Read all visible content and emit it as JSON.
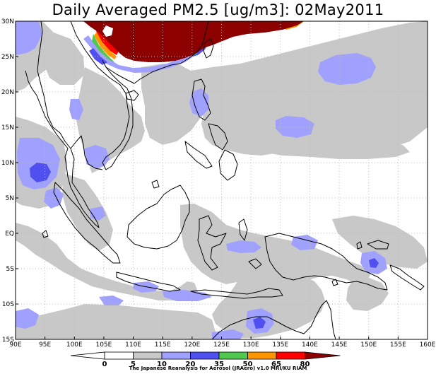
{
  "title": "Daily Averaged PM2.5 [ug/m3]: 02May2011",
  "map": {
    "lon_min": 90,
    "lon_max": 160,
    "lat_min": -15,
    "lat_max": 30,
    "lon_ticks": [
      {
        "v": 90,
        "t": "90E"
      },
      {
        "v": 95,
        "t": "95E"
      },
      {
        "v": 100,
        "t": "100E"
      },
      {
        "v": 105,
        "t": "105E"
      },
      {
        "v": 110,
        "t": "110E"
      },
      {
        "v": 115,
        "t": "115E"
      },
      {
        "v": 120,
        "t": "120E"
      },
      {
        "v": 125,
        "t": "125E"
      },
      {
        "v": 130,
        "t": "130E"
      },
      {
        "v": 135,
        "t": "135E"
      },
      {
        "v": 140,
        "t": "140E"
      },
      {
        "v": 145,
        "t": "145E"
      },
      {
        "v": 150,
        "t": "150E"
      },
      {
        "v": 155,
        "t": "155E"
      },
      {
        "v": 160,
        "t": "160E"
      }
    ],
    "lat_ticks": [
      {
        "v": 30,
        "t": "30N"
      },
      {
        "v": 25,
        "t": "25N"
      },
      {
        "v": 20,
        "t": "20N"
      },
      {
        "v": 15,
        "t": "15N"
      },
      {
        "v": 10,
        "t": "10N"
      },
      {
        "v": 5,
        "t": "5N"
      },
      {
        "v": 0,
        "t": "EQ"
      },
      {
        "v": -5,
        "t": "5S"
      },
      {
        "v": -10,
        "t": "10S"
      },
      {
        "v": -15,
        "t": "15S"
      }
    ],
    "colors": {
      "c0": "#ffffff",
      "c5": "#c8c8c8",
      "c10": "#a0a0ff",
      "c20": "#5050f0",
      "c35": "#50c850",
      "c50": "#ff9600",
      "c65": "#ff0000",
      "c80": "#8c0000",
      "coast": "#000000",
      "grid": "#bdbdbd"
    }
  },
  "colorbar": {
    "labels": [
      "0",
      "5",
      "10",
      "20",
      "35",
      "50",
      "65",
      "80"
    ],
    "colors": [
      "#ffffff",
      "#c8c8c8",
      "#a0a0ff",
      "#5050f0",
      "#50c850",
      "#ff9600",
      "#ff0000",
      "#8c0000"
    ]
  },
  "credit": "The Japanese Reanalysis for Aerosol (JRAero) v1.0 MRI/KU RIAM"
}
